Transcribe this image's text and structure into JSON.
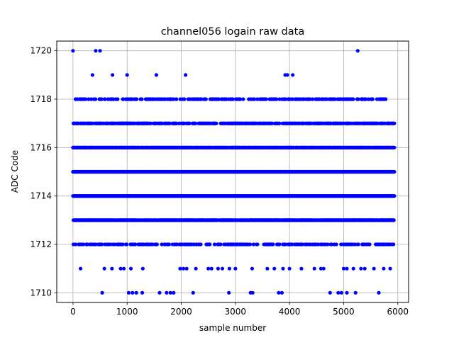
{
  "chart_data": {
    "type": "scatter",
    "title": "channel056 logain raw data",
    "xlabel": "sample number",
    "ylabel": "ADC Code",
    "xlim": [
      -300,
      6200
    ],
    "ylim": [
      1709.6,
      1720.4
    ],
    "xticks": [
      0,
      1000,
      2000,
      3000,
      4000,
      5000,
      6000
    ],
    "yticks": [
      1710,
      1712,
      1714,
      1716,
      1718,
      1720
    ],
    "grid": true,
    "legend": "none",
    "marker_color": "#0000ff",
    "points": [
      [
        0,
        1720
      ],
      [
        420,
        1720
      ],
      [
        500,
        1720
      ],
      [
        5260,
        1720
      ],
      [
        360,
        1719
      ],
      [
        730,
        1719
      ],
      [
        1000,
        1719
      ],
      [
        1540,
        1719
      ],
      [
        2080,
        1719
      ],
      [
        3920,
        1719
      ],
      [
        3960,
        1719
      ],
      [
        4060,
        1719
      ],
      [
        540,
        1710
      ],
      [
        1030,
        1710
      ],
      [
        1100,
        1710
      ],
      [
        1170,
        1710
      ],
      [
        1280,
        1710
      ],
      [
        1600,
        1710
      ],
      [
        1730,
        1710
      ],
      [
        1800,
        1710
      ],
      [
        1860,
        1710
      ],
      [
        2220,
        1710
      ],
      [
        2880,
        1710
      ],
      [
        3280,
        1710
      ],
      [
        3320,
        1710
      ],
      [
        3800,
        1710
      ],
      [
        3860,
        1710
      ],
      [
        4750,
        1710
      ],
      [
        4900,
        1710
      ],
      [
        4960,
        1710
      ],
      [
        5060,
        1710
      ],
      [
        5220,
        1710
      ],
      [
        5650,
        1710
      ],
      [
        140,
        1711
      ],
      [
        580,
        1711
      ],
      [
        720,
        1711
      ],
      [
        880,
        1711
      ],
      [
        940,
        1711
      ],
      [
        1070,
        1711
      ],
      [
        1290,
        1711
      ],
      [
        1980,
        1711
      ],
      [
        2040,
        1711
      ],
      [
        2100,
        1711
      ],
      [
        2270,
        1711
      ],
      [
        2500,
        1711
      ],
      [
        2560,
        1711
      ],
      [
        2680,
        1711
      ],
      [
        2760,
        1711
      ],
      [
        2890,
        1711
      ],
      [
        3000,
        1711
      ],
      [
        3310,
        1711
      ],
      [
        3590,
        1711
      ],
      [
        3720,
        1711
      ],
      [
        3880,
        1711
      ],
      [
        4000,
        1711
      ],
      [
        4220,
        1711
      ],
      [
        4460,
        1711
      ],
      [
        4580,
        1711
      ],
      [
        4630,
        1711
      ],
      [
        5000,
        1711
      ],
      [
        5060,
        1711
      ],
      [
        5180,
        1711
      ],
      [
        5320,
        1711
      ],
      [
        5390,
        1711
      ],
      [
        5560,
        1711
      ],
      [
        5740,
        1711
      ],
      [
        5860,
        1711
      ]
    ],
    "dense_rows": [
      {
        "y": 1712,
        "x_range": [
          0,
          5920
        ],
        "fill": "sparse"
      },
      {
        "y": 1713,
        "x_range": [
          0,
          5940
        ],
        "fill": "dense"
      },
      {
        "y": 1714,
        "x_range": [
          0,
          5940
        ],
        "fill": "solid"
      },
      {
        "y": 1715,
        "x_range": [
          0,
          5940
        ],
        "fill": "solid"
      },
      {
        "y": 1716,
        "x_range": [
          0,
          5940
        ],
        "fill": "dense"
      },
      {
        "y": 1717,
        "x_range": [
          0,
          5940
        ],
        "fill": "medium"
      },
      {
        "y": 1718,
        "x_range": [
          0,
          5780
        ],
        "fill": "sparse"
      }
    ]
  }
}
